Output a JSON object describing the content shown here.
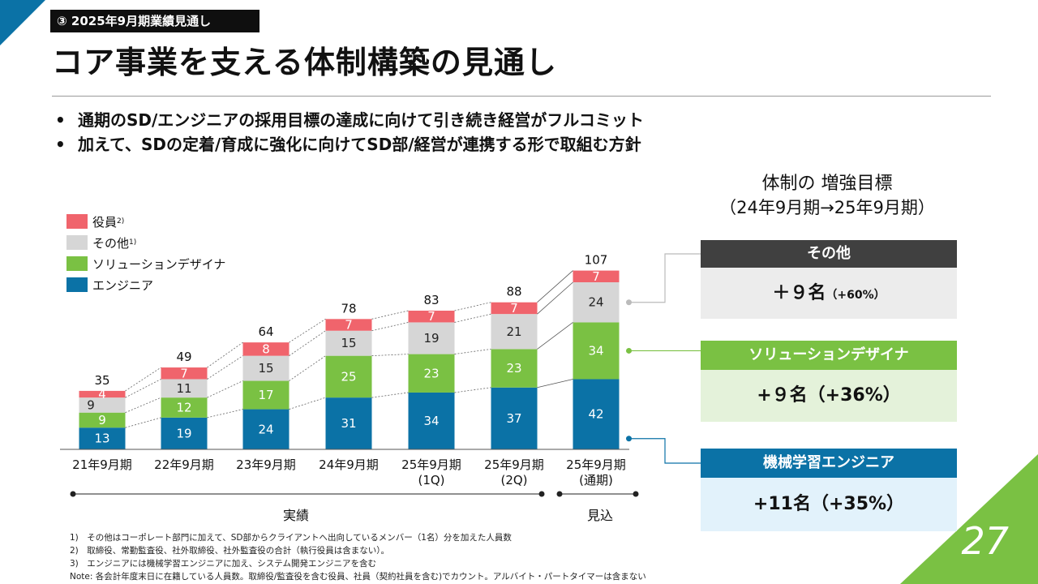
{
  "tag": "③ 2025年9月期業績見通し",
  "title": "コア事業を支える体制構築の見通し",
  "bullets": [
    "通期のSD/エンジニアの採用目標の達成に向けて引き続き経営がフルコミット",
    "加えて、SDの定着/育成に強化に向けてSD部/経営が連携する形で取組む方針"
  ],
  "right": {
    "title1": "体制の 増強目標",
    "title2": "（24年9月期→25年9月期）",
    "boxes": [
      {
        "head": "その他",
        "value": "＋９名",
        "pct": "（+60%）",
        "head_color": "#404040",
        "body_color": "#ececec"
      },
      {
        "head": "ソリューションデザイナ",
        "value": "+９名",
        "pct": "（+36%）",
        "head_color": "#7ac143",
        "body_color": "#e4f2da"
      },
      {
        "head": "機械学習エンジニア",
        "value": "+11名",
        "pct": "（+35%）",
        "head_color": "#0b72a6",
        "body_color": "#e2f2fb"
      }
    ]
  },
  "periods": {
    "actual": "実績",
    "forecast": "見込"
  },
  "footnotes": [
    "1)　その他はコーポレート部門に加えて、SD部からクライアントへ出向しているメンバー（1名）分を加えた人員数",
    "2)　取締役、常勤監査役、社外取締役、社外監査役の合計（執行役員は含まない）。",
    "3)　エンジニアには機械学習エンジニアに加え、システム開発エンジニアを含む",
    "Note: 各会計年度末日に在籍している人員数。取締役/監査役を含む役員、社員（契約社員を含む)でカウント。アルバイト・パートタイマーは含まない"
  ],
  "page_number": "27",
  "chart_data": {
    "type": "bar",
    "stacked": true,
    "categories": [
      [
        "21年9月期"
      ],
      [
        "22年9月期"
      ],
      [
        "23年9月期"
      ],
      [
        "24年9月期"
      ],
      [
        "25年9月期",
        "(1Q)"
      ],
      [
        "25年9月期",
        "(2Q)"
      ],
      [
        "25年9月期",
        "(通期)"
      ]
    ],
    "series": [
      {
        "name": "エンジニア",
        "color": "#0b72a6",
        "values": [
          13,
          19,
          24,
          31,
          34,
          37,
          42
        ]
      },
      {
        "name": "ソリューションデザイナ",
        "color": "#7ac143",
        "values": [
          9,
          12,
          17,
          25,
          23,
          23,
          34
        ]
      },
      {
        "name": "その他",
        "note": "1)",
        "color": "#d6d6d6",
        "values": [
          9,
          11,
          15,
          15,
          19,
          21,
          24
        ]
      },
      {
        "name": "役員",
        "note": "2)",
        "color": "#f0646c",
        "values": [
          4,
          7,
          8,
          7,
          7,
          7,
          7
        ]
      }
    ],
    "totals": [
      35,
      49,
      64,
      78,
      83,
      88,
      107
    ],
    "legend_position": "top-left",
    "legend_order": [
      "役員",
      "その他",
      "ソリューションデザイナ",
      "エンジニア"
    ],
    "grid": false
  }
}
